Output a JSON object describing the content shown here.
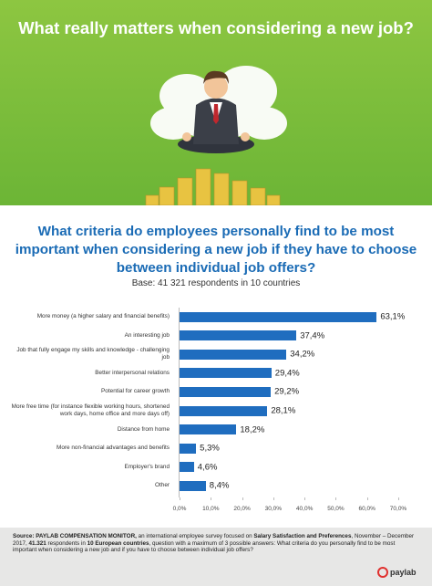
{
  "header": {
    "title": "What really matters when considering a new job?"
  },
  "chart_data": {
    "type": "bar",
    "orientation": "horizontal",
    "title": "What criteria do employees personally find to be most important when considering a new job if they have to choose between individual job offers?",
    "subtitle": "Base: 41 321 respondents in 10 countries",
    "categories": [
      "More money (a higher salary and financial benefits)",
      "An interesting job",
      "Job that fully engage my skills and knowledge - challenging job",
      "Better interpersonal relations",
      "Potential for career growth",
      "More free time (for instance flexible working hours, shortened work days, home office and more days off)",
      "Distance from home",
      "More non-financial advantages and benefits",
      "Employer's brand",
      "Other"
    ],
    "values": [
      63.1,
      37.4,
      34.2,
      29.4,
      29.2,
      28.1,
      18.2,
      5.3,
      4.6,
      8.4
    ],
    "value_labels": [
      "63,1%",
      "37,4%",
      "34,2%",
      "29,4%",
      "29,2%",
      "28,1%",
      "18,2%",
      "5,3%",
      "4,6%",
      "8,4%"
    ],
    "color": "#1f6dbf",
    "xlim": [
      0,
      70
    ],
    "xticks": [
      {
        "value": 0,
        "label": "0,0%"
      },
      {
        "value": 10,
        "label": "10,0%"
      },
      {
        "value": 20,
        "label": "20,0%"
      },
      {
        "value": 30,
        "label": "30,0%"
      },
      {
        "value": 40,
        "label": "40,0%"
      },
      {
        "value": 50,
        "label": "50,0%"
      },
      {
        "value": 60,
        "label": "60,0%"
      },
      {
        "value": 70,
        "label": "70,0%"
      }
    ],
    "grid": false
  },
  "footer": {
    "segments": [
      "Source: PAYLAB COMPENSATION MONITOR,",
      " an international employee survey focused on ",
      "Salary Satisfaction and Preferences",
      ", November – December 2017, ",
      "41.321",
      " respondents in ",
      "10 European countries",
      ", question with a maximum of 3 possible answers: What criteria do you personally find to be most important when considering a new job and if you have to choose between individual job offers?"
    ],
    "logo": "paylab"
  }
}
